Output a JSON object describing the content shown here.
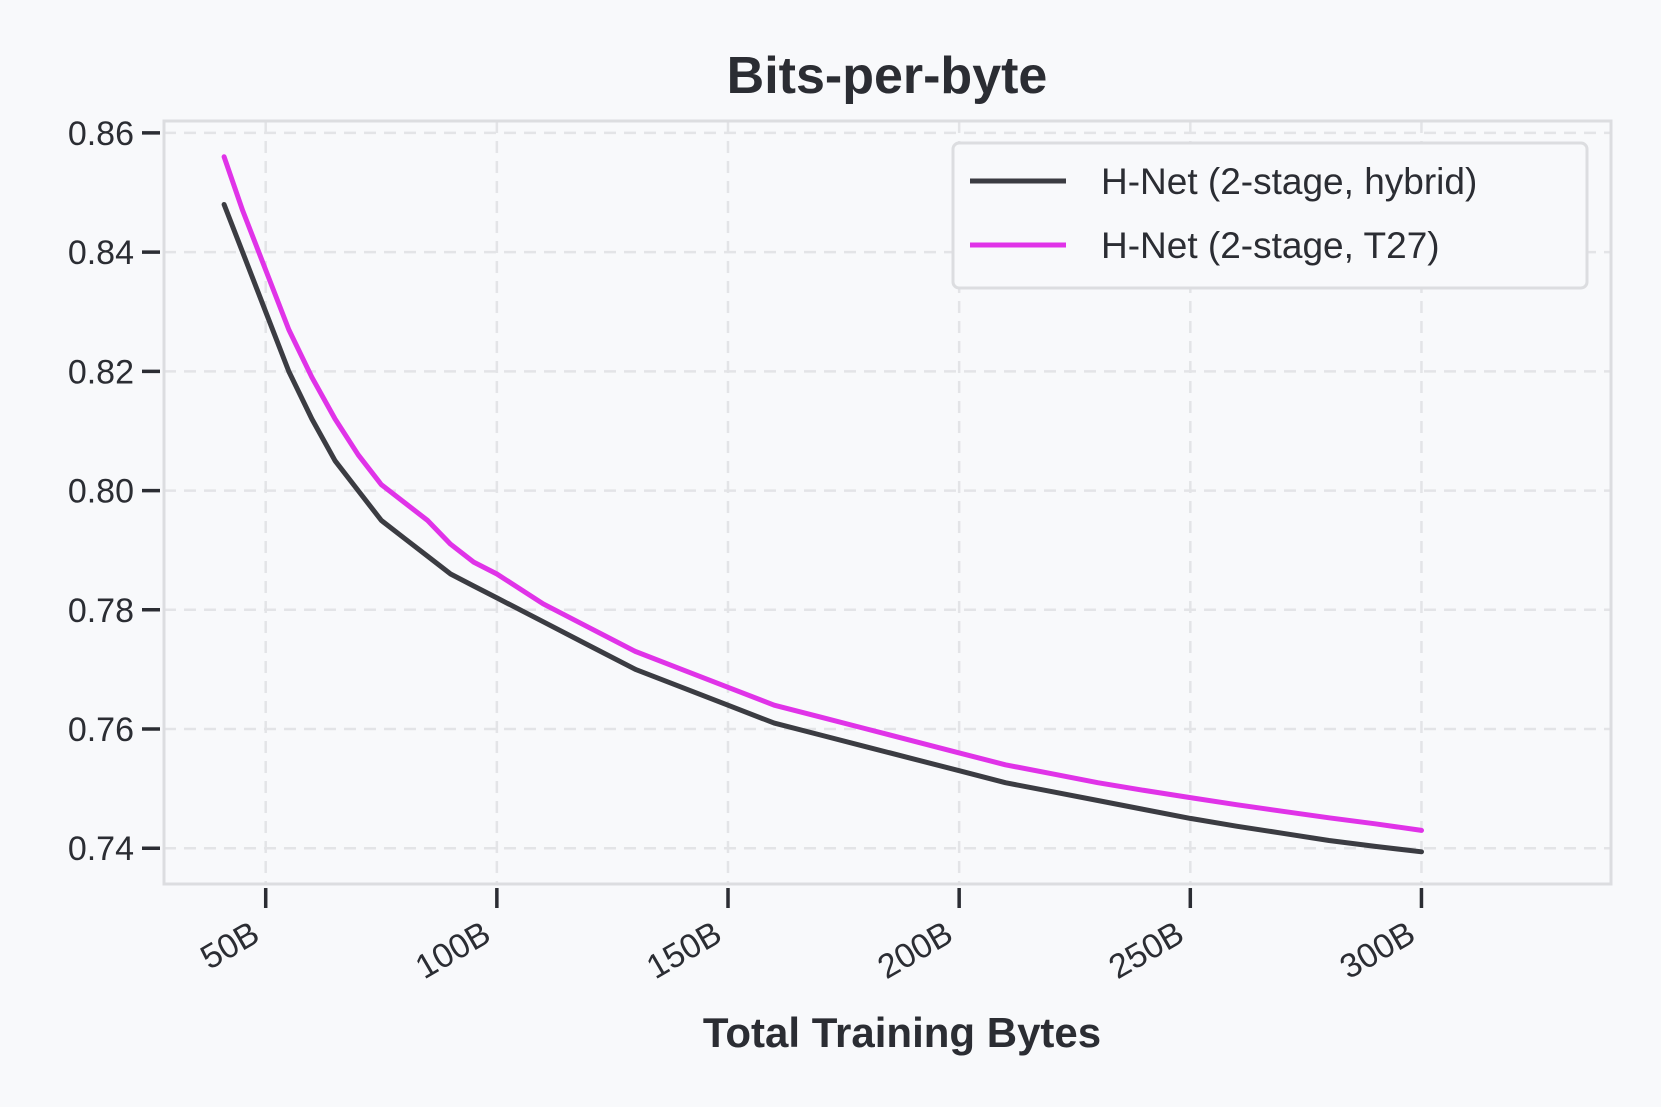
{
  "chart_data": {
    "type": "line",
    "title": "Bits-per-byte",
    "xlabel": "Total Training Bytes",
    "ylabel": "",
    "x_ticks": [
      50,
      100,
      150,
      200,
      250,
      300
    ],
    "x_tick_labels": [
      "50B",
      "100B",
      "150B",
      "200B",
      "250B",
      "300B"
    ],
    "y_ticks": [
      0.74,
      0.76,
      0.78,
      0.8,
      0.82,
      0.84,
      0.86
    ],
    "y_tick_labels": [
      "0.74",
      "0.76",
      "0.78",
      "0.80",
      "0.82",
      "0.84",
      "0.86"
    ],
    "xlim": [
      28,
      341
    ],
    "ylim": [
      0.734,
      0.862
    ],
    "x_unit_suffix": "B",
    "grid": true,
    "legend_position": "top-right",
    "series": [
      {
        "name": "H-Net (2-stage, hybrid)",
        "color": "#3b3c42",
        "x": [
          41,
          45,
          50,
          55,
          60,
          65,
          70,
          75,
          80,
          85,
          90,
          95,
          100,
          110,
          120,
          130,
          140,
          150,
          160,
          170,
          180,
          190,
          200,
          210,
          220,
          230,
          240,
          250,
          260,
          270,
          280,
          290,
          300
        ],
        "y": [
          0.848,
          0.84,
          0.83,
          0.82,
          0.812,
          0.805,
          0.8,
          0.795,
          0.792,
          0.789,
          0.786,
          0.784,
          0.782,
          0.778,
          0.774,
          0.77,
          0.767,
          0.764,
          0.761,
          0.759,
          0.757,
          0.755,
          0.753,
          0.751,
          0.7495,
          0.748,
          0.7465,
          0.745,
          0.7437,
          0.7425,
          0.7413,
          0.7403,
          0.7394
        ]
      },
      {
        "name": "H-Net (2-stage, T27)",
        "color": "#e033e8",
        "x": [
          41,
          45,
          50,
          55,
          60,
          65,
          70,
          75,
          80,
          85,
          90,
          95,
          100,
          110,
          120,
          130,
          140,
          150,
          160,
          170,
          180,
          190,
          200,
          210,
          220,
          230,
          240,
          250,
          260,
          270,
          280,
          290,
          300
        ],
        "y": [
          0.856,
          0.847,
          0.837,
          0.827,
          0.819,
          0.812,
          0.806,
          0.801,
          0.798,
          0.795,
          0.791,
          0.788,
          0.786,
          0.781,
          0.777,
          0.773,
          0.77,
          0.767,
          0.764,
          0.762,
          0.76,
          0.758,
          0.756,
          0.754,
          0.7525,
          0.751,
          0.7497,
          0.7485,
          0.7473,
          0.7462,
          0.7451,
          0.7441,
          0.743
        ]
      }
    ]
  }
}
